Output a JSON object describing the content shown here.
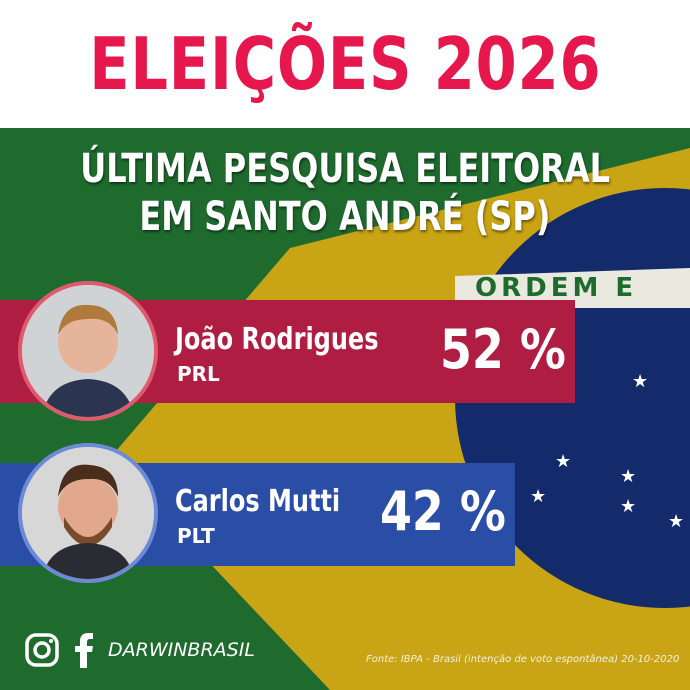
{
  "header": {
    "title": "ELEIÇÕES 2026"
  },
  "subtitle": {
    "line1": "ÚLTIMA PESQUISA ELEITORAL",
    "line2": "EM SANTO ANDRÉ (SP)"
  },
  "flag": {
    "band_text": "ORDEM E"
  },
  "candidates": [
    {
      "name": "João Rodrigues",
      "party": "PRL",
      "percent": "52 %",
      "color": "#b01d42"
    },
    {
      "name": "Carlos Mutti",
      "party": "PLT",
      "percent": "42 %",
      "color": "#2a4ea6"
    }
  ],
  "footer": {
    "handle": "DARWINBRASIL",
    "source": "Fonte: IBPA - Brasil (intenção de voto espontânea) 20-10-2020",
    "icons": [
      "instagram-icon",
      "facebook-icon"
    ]
  },
  "colors": {
    "title": "#e5174d"
  }
}
